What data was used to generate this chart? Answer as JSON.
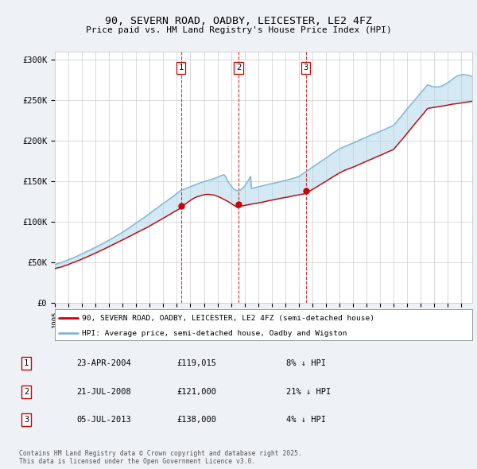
{
  "title": "90, SEVERN ROAD, OADBY, LEICESTER, LE2 4FZ",
  "subtitle": "Price paid vs. HM Land Registry's House Price Index (HPI)",
  "ylabel_ticks": [
    "£0",
    "£50K",
    "£100K",
    "£150K",
    "£200K",
    "£250K",
    "£300K"
  ],
  "ytick_values": [
    0,
    50000,
    100000,
    150000,
    200000,
    250000,
    300000
  ],
  "ylim": [
    0,
    310000
  ],
  "xlim_start": 1995.0,
  "xlim_end": 2025.8,
  "sale_dates": [
    2004.31,
    2008.55,
    2013.51
  ],
  "sale_prices": [
    119015,
    121000,
    138000
  ],
  "sale_labels": [
    "1",
    "2",
    "3"
  ],
  "sale_info": [
    [
      "1",
      "23-APR-2004",
      "£119,015",
      "8% ↓ HPI"
    ],
    [
      "2",
      "21-JUL-2008",
      "£121,000",
      "21% ↓ HPI"
    ],
    [
      "3",
      "05-JUL-2013",
      "£138,000",
      "4% ↓ HPI"
    ]
  ],
  "legend_line1": "90, SEVERN ROAD, OADBY, LEICESTER, LE2 4FZ (semi-detached house)",
  "legend_line2": "HPI: Average price, semi-detached house, Oadby and Wigston",
  "footer": "Contains HM Land Registry data © Crown copyright and database right 2025.\nThis data is licensed under the Open Government Licence v3.0.",
  "line_color_red": "#cc0000",
  "line_color_blue": "#7ab8d4",
  "fill_color_blue": "#aad4e8",
  "background_color": "#eef2f7",
  "plot_bg": "#ffffff",
  "grid_color": "#cccccc"
}
